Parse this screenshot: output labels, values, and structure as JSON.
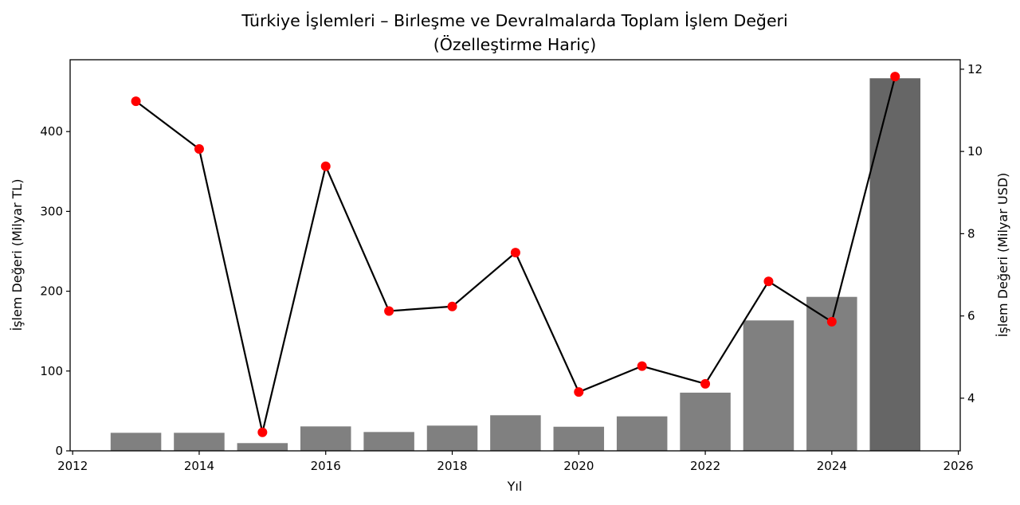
{
  "chart_data": {
    "type": "bar+line",
    "title": "Türkiye İşlemleri – Birleşme ve Devralmalarda Toplam İşlem Değeri",
    "subtitle": "(Özelleştirme Hariç)",
    "xlabel": "Yıl",
    "ylabel_left": "İşlem Değeri (Milyar TL)",
    "ylabel_right": "İşlem Değeri (Milyar USD)",
    "x": [
      2013,
      2014,
      2015,
      2016,
      2017,
      2018,
      2019,
      2020,
      2021,
      2022,
      2023,
      2024,
      2025
    ],
    "xlim": [
      2011.96,
      2026.03
    ],
    "xticks": [
      2012,
      2014,
      2016,
      2018,
      2020,
      2022,
      2024,
      2026
    ],
    "ylim_left": [
      0,
      490
    ],
    "yticks_left": [
      0,
      100,
      200,
      300,
      400
    ],
    "ylim_right": [
      2.72,
      12.23
    ],
    "yticks_right": [
      4,
      6,
      8,
      10,
      12
    ],
    "grid": false,
    "legend": null,
    "series": [
      {
        "name": "İşlem Değeri (Milyar TL)",
        "type": "bar",
        "axis": "left",
        "color": "#808080",
        "highlight_color": "#666666",
        "highlight_index": 12,
        "values": [
          22.6,
          22.6,
          9.7,
          30.6,
          23.6,
          31.6,
          44.6,
          30.2,
          43.2,
          72.9,
          163.4,
          192.9,
          466.8
        ]
      },
      {
        "name": "İşlem Değeri (Milyar USD)",
        "type": "line",
        "axis": "right",
        "line_color": "#000000",
        "marker_color": "#ff0000",
        "values": [
          11.22,
          10.06,
          3.17,
          9.64,
          6.12,
          6.23,
          7.54,
          4.15,
          4.78,
          4.35,
          6.84,
          5.86,
          11.82
        ]
      }
    ]
  }
}
